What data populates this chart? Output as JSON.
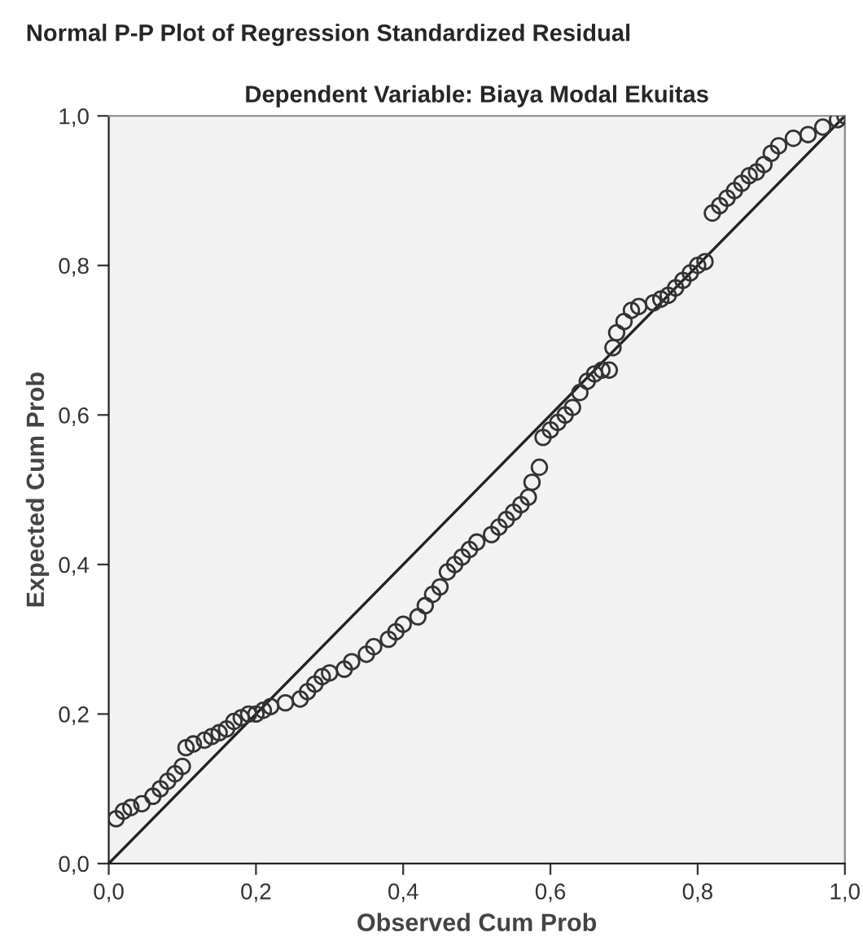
{
  "chart_data": {
    "type": "scatter",
    "title": "Normal P-P Plot of Regression Standardized Residual",
    "subtitle": "Dependent Variable: Biaya Modal Ekuitas",
    "xlabel": "Observed Cum Prob",
    "ylabel": "Expected Cum Prob",
    "xlim": [
      0,
      1
    ],
    "ylim": [
      0,
      1
    ],
    "xticks": [
      {
        "value": 0,
        "label": "0,0"
      },
      {
        "value": 0.2,
        "label": "0,2"
      },
      {
        "value": 0.4,
        "label": "0,4"
      },
      {
        "value": 0.6,
        "label": "0,6"
      },
      {
        "value": 0.8,
        "label": "0,8"
      },
      {
        "value": 1,
        "label": "1,0"
      }
    ],
    "yticks": [
      {
        "value": 0,
        "label": "0,0"
      },
      {
        "value": 0.2,
        "label": "0,2"
      },
      {
        "value": 0.4,
        "label": "0,4"
      },
      {
        "value": 0.6,
        "label": "0,6"
      },
      {
        "value": 0.8,
        "label": "0,8"
      },
      {
        "value": 1,
        "label": "1,0"
      }
    ],
    "grid": false,
    "series": [
      {
        "marker": "circle",
        "color": "#333333",
        "x": [
          0.01,
          0.02,
          0.03,
          0.045,
          0.06,
          0.07,
          0.08,
          0.09,
          0.1,
          0.105,
          0.115,
          0.13,
          0.14,
          0.15,
          0.16,
          0.17,
          0.18,
          0.19,
          0.2,
          0.21,
          0.22,
          0.24,
          0.26,
          0.27,
          0.28,
          0.29,
          0.3,
          0.32,
          0.33,
          0.35,
          0.36,
          0.38,
          0.39,
          0.4,
          0.42,
          0.43,
          0.44,
          0.45,
          0.46,
          0.47,
          0.48,
          0.49,
          0.5,
          0.52,
          0.53,
          0.54,
          0.55,
          0.56,
          0.57,
          0.575,
          0.585,
          0.59,
          0.6,
          0.61,
          0.62,
          0.63,
          0.64,
          0.65,
          0.66,
          0.67,
          0.68,
          0.685,
          0.69,
          0.7,
          0.71,
          0.72,
          0.74,
          0.75,
          0.76,
          0.77,
          0.78,
          0.79,
          0.8,
          0.81,
          0.82,
          0.83,
          0.84,
          0.85,
          0.86,
          0.87,
          0.88,
          0.89,
          0.9,
          0.91,
          0.93,
          0.95,
          0.97,
          0.99,
          1.0
        ],
        "values": [
          0.06,
          0.07,
          0.075,
          0.08,
          0.09,
          0.1,
          0.11,
          0.12,
          0.13,
          0.155,
          0.16,
          0.165,
          0.17,
          0.175,
          0.18,
          0.19,
          0.195,
          0.2,
          0.2,
          0.205,
          0.21,
          0.215,
          0.22,
          0.23,
          0.24,
          0.25,
          0.255,
          0.26,
          0.27,
          0.28,
          0.29,
          0.3,
          0.31,
          0.32,
          0.33,
          0.345,
          0.36,
          0.37,
          0.39,
          0.4,
          0.41,
          0.42,
          0.43,
          0.44,
          0.45,
          0.46,
          0.47,
          0.48,
          0.49,
          0.51,
          0.53,
          0.57,
          0.58,
          0.59,
          0.6,
          0.61,
          0.63,
          0.645,
          0.655,
          0.66,
          0.66,
          0.69,
          0.71,
          0.725,
          0.74,
          0.745,
          0.75,
          0.755,
          0.76,
          0.77,
          0.78,
          0.79,
          0.8,
          0.805,
          0.87,
          0.88,
          0.89,
          0.9,
          0.91,
          0.92,
          0.925,
          0.935,
          0.95,
          0.96,
          0.97,
          0.975,
          0.985,
          0.995,
          1.0
        ]
      },
      {
        "type": "line",
        "marker": "none",
        "color": "#222222",
        "x": [
          0,
          1
        ],
        "values": [
          0,
          1
        ]
      }
    ]
  }
}
